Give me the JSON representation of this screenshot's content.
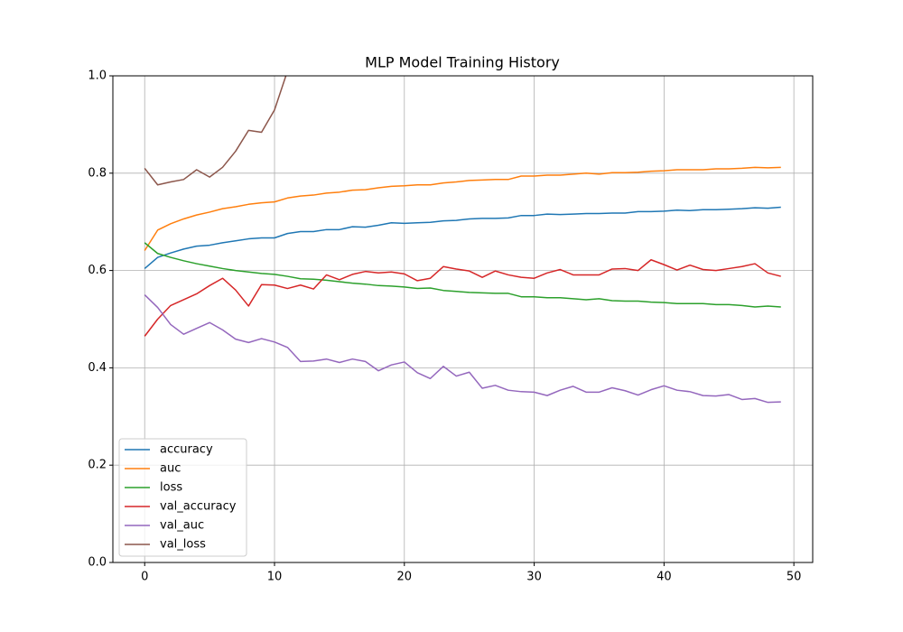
{
  "chart_data": {
    "type": "line",
    "title": "MLP Model Training History",
    "x": [
      0,
      1,
      2,
      3,
      4,
      5,
      6,
      7,
      8,
      9,
      10,
      11,
      12,
      13,
      14,
      15,
      16,
      17,
      18,
      19,
      20,
      21,
      22,
      23,
      24,
      25,
      26,
      27,
      28,
      29,
      30,
      31,
      32,
      33,
      34,
      35,
      36,
      37,
      38,
      39,
      40,
      41,
      42,
      43,
      44,
      45,
      46,
      47,
      48,
      49
    ],
    "xlim": [
      -2.45,
      51.45
    ],
    "xticks": [
      0,
      10,
      20,
      30,
      40,
      50
    ],
    "ylim": [
      0,
      1
    ],
    "yticks": [
      {
        "value": 0,
        "label": "0.0"
      },
      0.2,
      0.4,
      0.6,
      0.8,
      {
        "value": 1,
        "label": "1.0"
      }
    ],
    "grid": true,
    "legend": "lower left",
    "series": [
      {
        "name": "accuracy",
        "color": "#1f77b4",
        "values": [
          0.604,
          0.627,
          0.636,
          0.644,
          0.65,
          0.652,
          0.657,
          0.661,
          0.665,
          0.667,
          0.667,
          0.676,
          0.68,
          0.68,
          0.684,
          0.684,
          0.69,
          0.689,
          0.693,
          0.698,
          0.697,
          0.698,
          0.699,
          0.702,
          0.703,
          0.706,
          0.707,
          0.707,
          0.708,
          0.713,
          0.713,
          0.716,
          0.715,
          0.716,
          0.717,
          0.717,
          0.718,
          0.718,
          0.721,
          0.721,
          0.722,
          0.724,
          0.723,
          0.725,
          0.725,
          0.726,
          0.727,
          0.729,
          0.728,
          0.73
        ]
      },
      {
        "name": "auc",
        "color": "#ff7f0e",
        "values": [
          0.641,
          0.683,
          0.696,
          0.706,
          0.714,
          0.72,
          0.727,
          0.731,
          0.736,
          0.739,
          0.741,
          0.749,
          0.753,
          0.755,
          0.759,
          0.761,
          0.765,
          0.766,
          0.77,
          0.773,
          0.774,
          0.776,
          0.776,
          0.78,
          0.782,
          0.785,
          0.786,
          0.787,
          0.787,
          0.794,
          0.794,
          0.796,
          0.796,
          0.798,
          0.8,
          0.798,
          0.801,
          0.801,
          0.802,
          0.804,
          0.805,
          0.807,
          0.807,
          0.807,
          0.809,
          0.809,
          0.81,
          0.812,
          0.811,
          0.812
        ]
      },
      {
        "name": "loss",
        "color": "#2ca02c",
        "values": [
          0.657,
          0.635,
          0.627,
          0.62,
          0.614,
          0.609,
          0.604,
          0.6,
          0.597,
          0.594,
          0.592,
          0.588,
          0.583,
          0.582,
          0.58,
          0.577,
          0.574,
          0.572,
          0.569,
          0.568,
          0.566,
          0.563,
          0.564,
          0.559,
          0.557,
          0.555,
          0.554,
          0.553,
          0.553,
          0.546,
          0.546,
          0.544,
          0.544,
          0.542,
          0.54,
          0.542,
          0.538,
          0.537,
          0.537,
          0.535,
          0.534,
          0.532,
          0.532,
          0.532,
          0.53,
          0.53,
          0.528,
          0.525,
          0.527,
          0.525
        ]
      },
      {
        "name": "val_accuracy",
        "color": "#d62728",
        "values": [
          0.465,
          0.5,
          0.528,
          0.54,
          0.552,
          0.569,
          0.584,
          0.56,
          0.527,
          0.571,
          0.57,
          0.563,
          0.57,
          0.562,
          0.591,
          0.581,
          0.592,
          0.598,
          0.595,
          0.597,
          0.593,
          0.579,
          0.584,
          0.608,
          0.603,
          0.599,
          0.586,
          0.599,
          0.591,
          0.586,
          0.584,
          0.595,
          0.602,
          0.591,
          0.591,
          0.591,
          0.603,
          0.604,
          0.6,
          0.622,
          0.612,
          0.601,
          0.611,
          0.602,
          0.6,
          0.604,
          0.608,
          0.614,
          0.595,
          0.588
        ]
      },
      {
        "name": "val_auc",
        "color": "#9467bd",
        "values": [
          0.55,
          0.524,
          0.489,
          0.469,
          0.481,
          0.493,
          0.478,
          0.459,
          0.452,
          0.46,
          0.453,
          0.442,
          0.413,
          0.414,
          0.418,
          0.411,
          0.418,
          0.413,
          0.394,
          0.406,
          0.412,
          0.39,
          0.378,
          0.403,
          0.383,
          0.391,
          0.358,
          0.364,
          0.354,
          0.351,
          0.35,
          0.343,
          0.354,
          0.362,
          0.35,
          0.35,
          0.359,
          0.353,
          0.344,
          0.355,
          0.363,
          0.354,
          0.351,
          0.343,
          0.342,
          0.345,
          0.335,
          0.337,
          0.329,
          0.33
        ]
      },
      {
        "name": "val_loss",
        "color": "#8c564b",
        "values": [
          0.81,
          0.776,
          0.782,
          0.787,
          0.807,
          0.792,
          0.812,
          0.845,
          0.888,
          0.884,
          0.93,
          1.01,
          null,
          null,
          null,
          null,
          null,
          null,
          null,
          null,
          null,
          null,
          null,
          null,
          null,
          null,
          null,
          null,
          null,
          null,
          null,
          null,
          null,
          null,
          null,
          null,
          null,
          null,
          null,
          null,
          null,
          null,
          null,
          null,
          null,
          null,
          null,
          null,
          null,
          null
        ]
      }
    ]
  }
}
